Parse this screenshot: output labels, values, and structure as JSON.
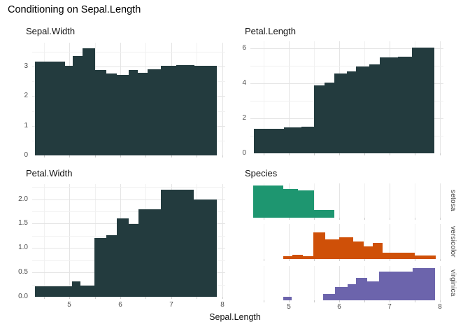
{
  "title": "Conditioning on Sepal.Length",
  "x_axis": {
    "label": "Sepal.Length",
    "ticks": [
      5,
      6,
      7,
      8
    ],
    "tick_labels": [
      "5",
      "6",
      "7",
      "8"
    ],
    "minor": [
      4.5,
      5.5,
      6.5,
      7.5
    ],
    "tick_marks": [
      4.5,
      5,
      5.5,
      6,
      6.5,
      7,
      7.5,
      8
    ]
  },
  "colors": {
    "bar": "#233b3e",
    "grid_major": "#e4e4e4",
    "grid_minor": "#f1f1f1",
    "tick_mark": "#cccccc",
    "tick_text": "#4d4d4d"
  },
  "chart_data": [
    {
      "type": "bar",
      "panel": "tl",
      "title": "Sepal.Width",
      "color": "#233b3e",
      "xlim": [
        4.27,
        8.06
      ],
      "ylim": [
        0,
        3.81
      ],
      "y_ticks": [
        0,
        1,
        2,
        3
      ],
      "y_tick_labels": [
        "0",
        "1",
        "2",
        "3"
      ],
      "y_minor": [
        0.5,
        1.5,
        2.5,
        3.5
      ],
      "grid": true,
      "segments": [
        [
          4.32,
          4.92,
          3.16
        ],
        [
          4.92,
          5.07,
          3.03
        ],
        [
          5.07,
          5.26,
          3.35
        ],
        [
          5.26,
          5.51,
          3.63
        ],
        [
          5.51,
          5.73,
          2.89
        ],
        [
          5.73,
          5.93,
          2.78
        ],
        [
          5.93,
          6.16,
          2.71
        ],
        [
          6.16,
          6.34,
          2.88
        ],
        [
          6.34,
          6.53,
          2.8
        ],
        [
          6.53,
          6.79,
          2.92
        ],
        [
          6.79,
          7.1,
          3.03
        ],
        [
          7.1,
          7.45,
          3.06
        ],
        [
          7.45,
          7.89,
          3.03
        ]
      ]
    },
    {
      "type": "bar",
      "panel": "tr",
      "title": "Petal.Length",
      "color": "#233b3e",
      "xlim": [
        4.24,
        8.07
      ],
      "ylim": [
        0,
        6.39
      ],
      "y_ticks": [
        0,
        2,
        4,
        6
      ],
      "y_tick_labels": [
        "0",
        "2",
        "4",
        "6"
      ],
      "y_minor": [
        1,
        3,
        5
      ],
      "grid": true,
      "segments": [
        [
          4.31,
          4.9,
          1.4
        ],
        [
          4.9,
          5.25,
          1.47
        ],
        [
          5.25,
          5.5,
          1.53
        ],
        [
          5.5,
          5.71,
          3.86
        ],
        [
          5.71,
          5.9,
          4.05
        ],
        [
          5.9,
          6.15,
          4.55
        ],
        [
          6.15,
          6.33,
          4.68
        ],
        [
          6.33,
          6.6,
          4.97
        ],
        [
          6.6,
          6.81,
          5.08
        ],
        [
          6.81,
          7.17,
          5.47
        ],
        [
          7.17,
          7.45,
          5.5
        ],
        [
          7.45,
          7.89,
          6.05
        ]
      ]
    },
    {
      "type": "bar",
      "panel": "bl",
      "title": "Petal.Width",
      "color": "#233b3e",
      "xlim": [
        4.27,
        8.06
      ],
      "ylim": [
        0,
        2.31
      ],
      "y_ticks": [
        0,
        0.5,
        1,
        1.5,
        2
      ],
      "y_tick_labels": [
        "0.0",
        "0.5",
        "1.0",
        "1.5",
        "2.0"
      ],
      "y_minor": [
        0.25,
        0.75,
        1.25,
        1.75,
        2.25
      ],
      "grid": true,
      "segments": [
        [
          4.32,
          5.05,
          0.21
        ],
        [
          5.05,
          5.22,
          0.31
        ],
        [
          5.22,
          5.49,
          0.23
        ],
        [
          5.49,
          5.73,
          1.2
        ],
        [
          5.73,
          5.93,
          1.26
        ],
        [
          5.93,
          6.16,
          1.6
        ],
        [
          6.16,
          6.36,
          1.49
        ],
        [
          6.36,
          6.79,
          1.8
        ],
        [
          6.79,
          7.44,
          2.2
        ],
        [
          7.44,
          7.89,
          2.0
        ]
      ]
    },
    {
      "type": "histogram",
      "panel": "species",
      "title": "Species",
      "xlim": [
        4.24,
        8.07
      ],
      "ylim": [
        0,
        1
      ],
      "strips": [
        {
          "label": "setosa",
          "color": "#1e9670",
          "segments": [
            [
              4.29,
              4.89,
              0.94
            ],
            [
              4.89,
              5.19,
              0.83
            ],
            [
              5.19,
              5.5,
              0.8
            ],
            [
              5.5,
              5.9,
              0.22
            ]
          ]
        },
        {
          "label": "versicolor",
          "color": "#cf5008",
          "segments": [
            [
              4.89,
              5.07,
              0.07
            ],
            [
              5.07,
              5.28,
              0.12
            ],
            [
              5.28,
              5.49,
              0.08
            ],
            [
              5.49,
              5.72,
              0.76
            ],
            [
              5.72,
              6.0,
              0.55
            ],
            [
              6.0,
              6.28,
              0.62
            ],
            [
              6.28,
              6.49,
              0.49
            ],
            [
              6.49,
              6.67,
              0.35
            ],
            [
              6.67,
              6.86,
              0.45
            ],
            [
              6.86,
              7.5,
              0.17
            ],
            [
              7.5,
              7.92,
              0.09
            ]
          ]
        },
        {
          "label": "virginica",
          "color": "#6c64ac",
          "segments": [
            [
              4.89,
              5.06,
              0.1
            ],
            [
              5.68,
              5.92,
              0.19
            ],
            [
              5.92,
              6.17,
              0.38
            ],
            [
              6.17,
              6.33,
              0.46
            ],
            [
              6.33,
              6.56,
              0.66
            ],
            [
              6.56,
              6.79,
              0.56
            ],
            [
              6.79,
              7.46,
              0.83
            ],
            [
              7.46,
              7.9,
              0.93
            ]
          ]
        }
      ]
    }
  ]
}
